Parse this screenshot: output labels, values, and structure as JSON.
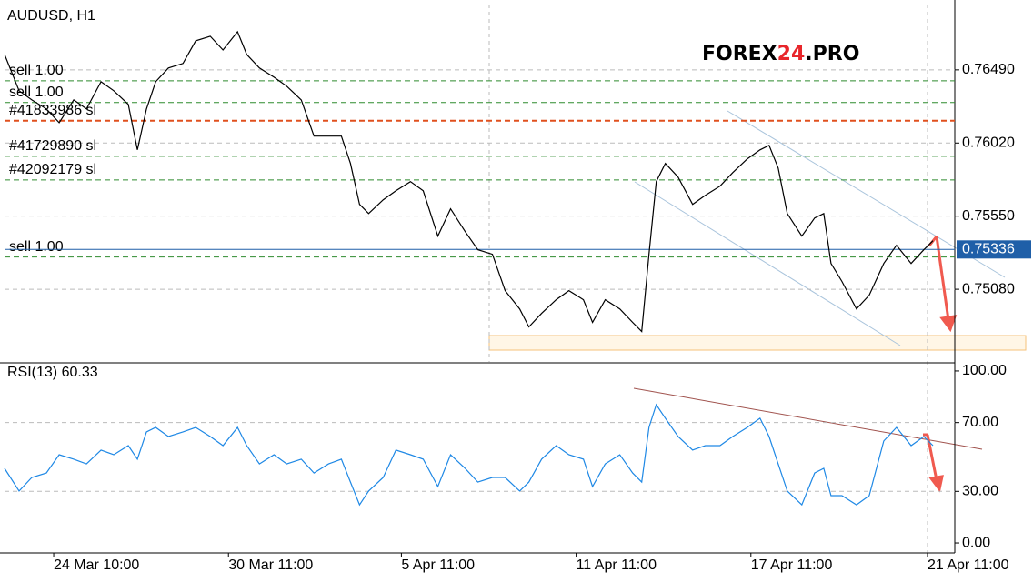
{
  "chart_data": [
    {
      "type": "line",
      "title": "AUDUSD, H1",
      "color": "#000000",
      "logo": [
        "FOREX",
        "24",
        ".PRO"
      ],
      "xlim": [
        0,
        522
      ],
      "x": [
        0,
        8,
        15,
        23,
        30,
        38,
        45,
        53,
        60,
        68,
        73,
        78,
        83,
        90,
        98,
        105,
        113,
        120,
        128,
        133,
        140,
        148,
        155,
        163,
        170,
        178,
        185,
        190,
        195,
        200,
        208,
        215,
        223,
        230,
        238,
        245,
        253,
        260,
        268,
        275,
        283,
        288,
        295,
        303,
        310,
        318,
        323,
        330,
        338,
        345,
        350,
        354,
        358,
        363,
        370,
        378,
        385,
        393,
        400,
        408,
        415,
        420,
        425,
        430,
        438,
        445,
        450,
        454,
        460,
        468,
        475,
        483,
        490,
        498,
        505,
        510
      ],
      "values": [
        0.76589,
        0.76356,
        0.76297,
        0.76239,
        0.76151,
        0.76297,
        0.76239,
        0.76414,
        0.76356,
        0.76268,
        0.75976,
        0.76239,
        0.76414,
        0.76502,
        0.76531,
        0.76677,
        0.76706,
        0.76618,
        0.76735,
        0.76589,
        0.76502,
        0.76443,
        0.76385,
        0.76297,
        0.76064,
        0.76064,
        0.76064,
        0.75889,
        0.75626,
        0.75567,
        0.75655,
        0.75713,
        0.75772,
        0.75713,
        0.75422,
        0.75597,
        0.75451,
        0.75334,
        0.75305,
        0.75071,
        0.74954,
        0.74838,
        0.74925,
        0.75013,
        0.75071,
        0.75013,
        0.74867,
        0.75013,
        0.74954,
        0.74867,
        0.74808,
        0.75305,
        0.75772,
        0.75889,
        0.75801,
        0.75626,
        0.75684,
        0.75743,
        0.7583,
        0.75918,
        0.75976,
        0.76005,
        0.75859,
        0.75567,
        0.75422,
        0.75538,
        0.75567,
        0.75246,
        0.7513,
        0.74954,
        0.75042,
        0.75246,
        0.75363,
        0.75246,
        0.75334,
        0.75392
      ],
      "ylim": [
        0.74613,
        0.7691
      ],
      "yticks": [
        {
          "value": 0.7649,
          "label": "0.76490"
        },
        {
          "value": 0.7602,
          "label": "0.76020"
        },
        {
          "value": 0.7555,
          "label": "0.75550"
        },
        {
          "value": 0.7508,
          "label": "0.75080"
        }
      ],
      "grid": true,
      "current": {
        "value": 0.75336,
        "label": "0.75336",
        "color": "#1f5fa8"
      },
      "levels": [
        {
          "label": "sell 1.00",
          "value": 0.7642,
          "color": "#2e8b2e"
        },
        {
          "label": "sell 1.00",
          "value": 0.7628,
          "color": "#2e8b2e"
        },
        {
          "label": "#41833986 sl",
          "value": 0.76163,
          "color": "#e0501e"
        },
        {
          "label": "#41729890 sl",
          "value": 0.75935,
          "color": "#2e8b2e"
        },
        {
          "label": "#42092179 sl",
          "value": 0.75783,
          "color": "#2e8b2e"
        },
        {
          "label": "sell 1.00",
          "value": 0.75287,
          "color": "#2e8b2e"
        }
      ]
    },
    {
      "type": "line",
      "title": "RSI(13) 60.33",
      "color": "#1e88e5",
      "xlim": [
        0,
        522
      ],
      "x": [
        0,
        8,
        15,
        23,
        30,
        38,
        45,
        53,
        60,
        68,
        73,
        78,
        83,
        90,
        98,
        105,
        113,
        120,
        128,
        133,
        140,
        148,
        155,
        163,
        170,
        178,
        185,
        190,
        195,
        200,
        208,
        215,
        223,
        230,
        238,
        245,
        253,
        260,
        268,
        275,
        283,
        288,
        295,
        303,
        310,
        318,
        323,
        330,
        338,
        345,
        350,
        354,
        358,
        363,
        370,
        378,
        385,
        393,
        400,
        408,
        415,
        420,
        425,
        430,
        438,
        445,
        450,
        454,
        460,
        468,
        475,
        483,
        490,
        498,
        505,
        510
      ],
      "values": [
        43.4,
        30.2,
        38.1,
        40.7,
        51.3,
        48.7,
        46.0,
        54.0,
        51.3,
        56.6,
        48.7,
        64.6,
        67.2,
        61.9,
        64.6,
        67.2,
        61.9,
        56.6,
        67.2,
        56.6,
        46.0,
        51.3,
        46.0,
        48.7,
        40.7,
        46.0,
        48.7,
        35.4,
        22.2,
        30.2,
        38.1,
        54.0,
        51.3,
        48.7,
        32.8,
        51.3,
        43.4,
        35.4,
        38.1,
        38.1,
        30.2,
        35.4,
        48.7,
        56.6,
        51.3,
        48.7,
        32.8,
        46.0,
        51.3,
        40.7,
        35.4,
        67.2,
        80.4,
        72.5,
        61.9,
        54.0,
        56.6,
        56.6,
        61.9,
        67.2,
        72.5,
        61.9,
        46.0,
        30.2,
        22.2,
        40.7,
        43.4,
        27.5,
        27.5,
        22.2,
        27.5,
        59.3,
        67.2,
        56.6,
        61.9,
        56.6
      ],
      "ylim": [
        -5.8,
        104.2
      ],
      "yticks": [
        {
          "value": 100,
          "label": "100.00"
        },
        {
          "value": 70,
          "label": "70.00"
        },
        {
          "value": 30,
          "label": "30.00"
        },
        {
          "value": 0,
          "label": "0.00"
        }
      ],
      "levels": [
        70,
        30
      ],
      "xticks": [
        {
          "value": 27,
          "label": "24 Mar 10:00"
        },
        {
          "value": 123,
          "label": "30 Mar 11:00"
        },
        {
          "value": 218,
          "label": "5 Apr 11:00"
        },
        {
          "value": 314,
          "label": "11 Apr 11:00"
        },
        {
          "value": 410,
          "label": "17 Apr 11:00"
        },
        {
          "value": 507,
          "label": "21 Apr 11:00"
        }
      ]
    }
  ]
}
